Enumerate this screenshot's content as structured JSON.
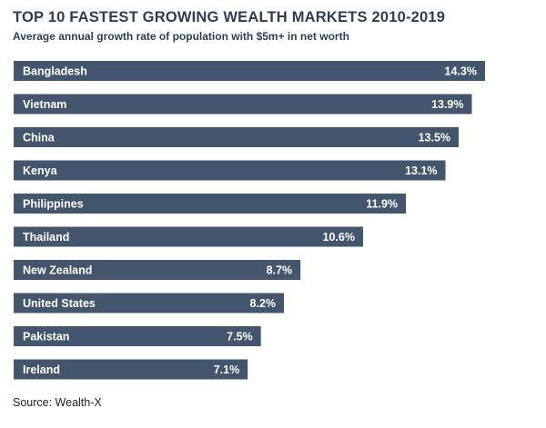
{
  "title": "TOP 10 FASTEST GROWING WEALTH MARKETS 2010-2019",
  "subtitle": "Average annual growth rate of population with $5m+ in net worth",
  "source": "Source: Wealth-X",
  "colors": {
    "bar": "#43566d",
    "bar_text": "#ffffff",
    "title": "#2d3e52"
  },
  "chart_data": {
    "type": "bar",
    "orientation": "horizontal",
    "categories": [
      "Bangladesh",
      "Vietnam",
      "China",
      "Kenya",
      "Philippines",
      "Thailand",
      "New Zealand",
      "United States",
      "Pakistan",
      "Ireland"
    ],
    "values": [
      14.3,
      13.9,
      13.5,
      13.1,
      11.9,
      10.6,
      8.7,
      8.2,
      7.5,
      7.1
    ],
    "value_labels": [
      "14.3%",
      "13.9%",
      "13.5%",
      "13.1%",
      "11.9%",
      "10.6%",
      "8.7%",
      "8.2%",
      "7.5%",
      "7.1%"
    ],
    "unit": "%",
    "xlim": [
      0,
      14.3
    ],
    "grid": false,
    "legend": "none"
  }
}
